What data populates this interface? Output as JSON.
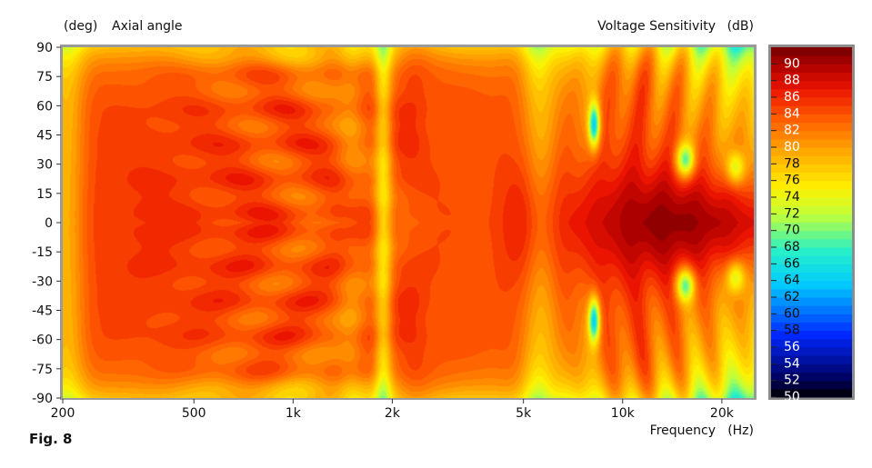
{
  "chart_data": {
    "type": "heatmap",
    "title": "",
    "ylabel_unit": "(deg)",
    "ylabel": "Axial angle",
    "colorbar_label": "Voltage Sensitivity",
    "colorbar_unit": "(dB)",
    "xlabel": "Frequency",
    "xlabel_unit": "(Hz)",
    "x_scale": "log",
    "xlim": [
      200,
      25000
    ],
    "ylim": [
      -90,
      90
    ],
    "y_ticks": [
      90,
      75,
      60,
      45,
      30,
      15,
      0,
      -15,
      -30,
      -45,
      -60,
      -75,
      -90
    ],
    "y_tick_labels": [
      "90",
      "75",
      "60",
      "45",
      "30",
      "15",
      "0",
      "-15",
      "-30",
      "-45",
      "-60",
      "-75",
      "-90"
    ],
    "x_ticks": [
      200,
      500,
      1000,
      2000,
      5000,
      10000,
      20000
    ],
    "x_tick_labels": [
      "200",
      "500",
      "1k",
      "2k",
      "5k",
      "10k",
      "20k"
    ],
    "colorbar_range": [
      50,
      92
    ],
    "colorbar_ticks": [
      "90",
      "88",
      "86",
      "84",
      "82",
      "80",
      "78",
      "76",
      "74",
      "72",
      "70",
      "68",
      "66",
      "64",
      "62",
      "60",
      "58",
      "56",
      "54",
      "52",
      "50"
    ],
    "grid": false,
    "figure_label": "Fig. 8",
    "colors": {
      "frame": "#8c8c8c",
      "plot_border": "#a0a0a0"
    }
  }
}
